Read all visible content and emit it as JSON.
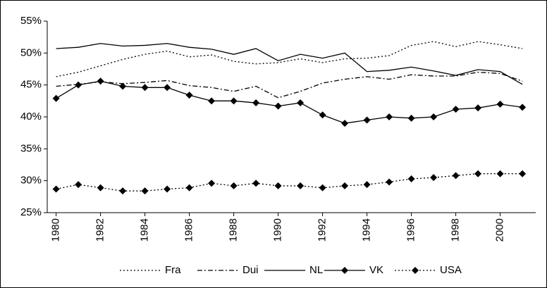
{
  "chart_data": {
    "type": "line",
    "x": [
      1980,
      1981,
      1982,
      1983,
      1984,
      1985,
      1986,
      1987,
      1988,
      1989,
      1990,
      1991,
      1992,
      1993,
      1994,
      1995,
      1996,
      1997,
      1998,
      1999,
      2000,
      2001
    ],
    "xlim": [
      1979.6,
      2001.6
    ],
    "xticks": [
      1980,
      1982,
      1984,
      1986,
      1988,
      1990,
      1992,
      1994,
      1996,
      1998,
      2000
    ],
    "ylim": [
      25,
      55
    ],
    "yticks": [
      {
        "value": 25,
        "label": "25%"
      },
      {
        "value": 30,
        "label": "30%"
      },
      {
        "value": 35,
        "label": "35%"
      },
      {
        "value": 40,
        "label": "40%"
      },
      {
        "value": 45,
        "label": "45%"
      },
      {
        "value": 50,
        "label": "50%"
      },
      {
        "value": 55,
        "label": "55%"
      }
    ],
    "legend": "bottom",
    "series": [
      {
        "name": "Fra",
        "color": "#000000",
        "style": "dotted",
        "marker": "none",
        "values": [
          46.3,
          47.0,
          48.0,
          49.0,
          49.8,
          50.3,
          49.4,
          49.7,
          48.7,
          48.3,
          48.5,
          49.1,
          48.5,
          49.1,
          49.2,
          49.6,
          51.2,
          51.8,
          51.0,
          51.8,
          51.3,
          50.7
        ]
      },
      {
        "name": "Dui",
        "color": "#000000",
        "style": "dash-dot",
        "marker": "none",
        "values": [
          44.8,
          45.1,
          45.5,
          45.2,
          45.4,
          45.7,
          44.9,
          44.6,
          44.0,
          44.8,
          43.0,
          44.0,
          45.3,
          45.9,
          46.3,
          45.9,
          46.6,
          46.4,
          46.4,
          47.0,
          46.8,
          45.6
        ]
      },
      {
        "name": "NL",
        "color": "#000000",
        "style": "solid",
        "marker": "none",
        "values": [
          50.7,
          50.9,
          51.5,
          51.1,
          51.2,
          51.5,
          50.9,
          50.6,
          49.8,
          50.7,
          48.8,
          49.8,
          49.2,
          50.0,
          47.1,
          47.3,
          47.8,
          47.2,
          46.5,
          47.4,
          47.1,
          45.1
        ]
      },
      {
        "name": "VK",
        "color": "#000000",
        "style": "solid",
        "marker": "diamond",
        "values": [
          42.9,
          45.0,
          45.6,
          44.8,
          44.6,
          44.6,
          43.4,
          42.5,
          42.5,
          42.2,
          41.7,
          42.2,
          40.3,
          39.0,
          39.5,
          40.0,
          39.8,
          40.0,
          41.2,
          41.4,
          42.0,
          41.5
        ]
      },
      {
        "name": "USA",
        "color": "#000000",
        "style": "dotted",
        "marker": "diamond",
        "values": [
          28.7,
          29.4,
          28.9,
          28.4,
          28.4,
          28.7,
          28.9,
          29.6,
          29.2,
          29.6,
          29.2,
          29.2,
          28.9,
          29.2,
          29.4,
          29.8,
          30.3,
          30.5,
          30.8,
          31.1,
          31.1,
          31.1
        ]
      }
    ]
  }
}
